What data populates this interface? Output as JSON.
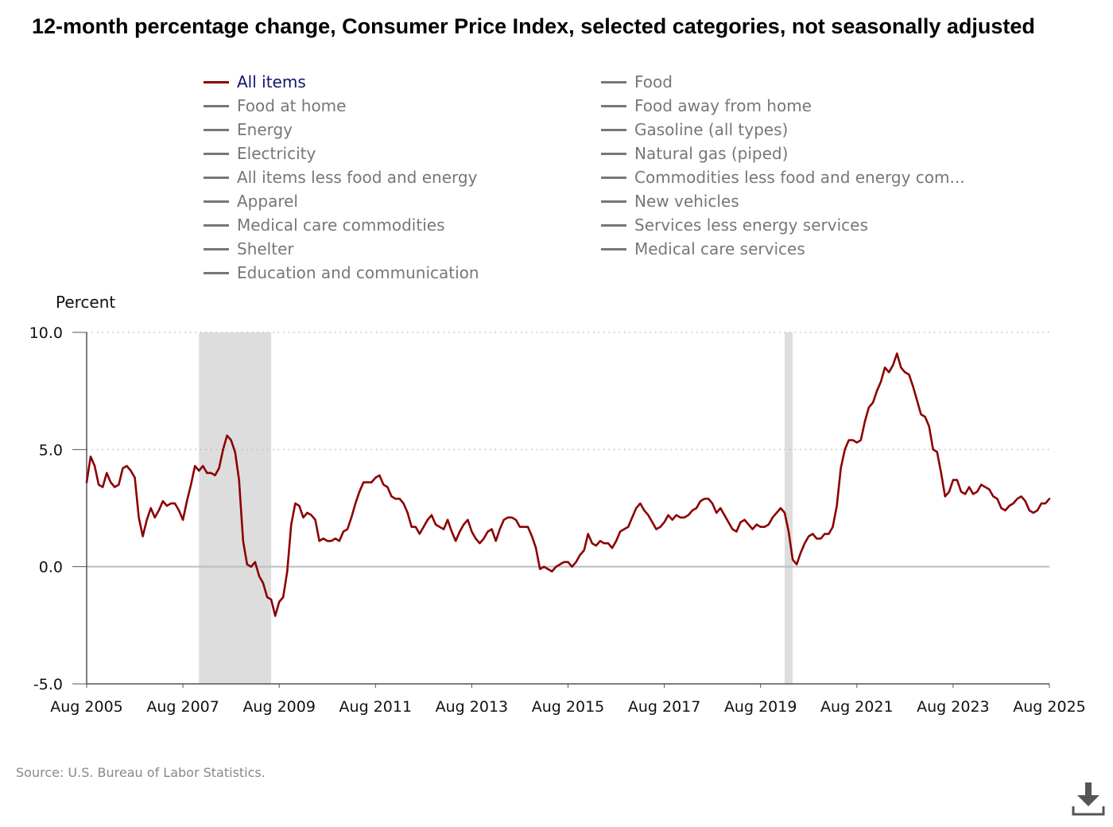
{
  "title": "12-month percentage change, Consumer Price Index, selected categories, not seasonally adjusted",
  "source": "Source: U.S. Bureau of Labor Statistics.",
  "download_icon": "download-icon",
  "colors": {
    "active_series": "#8b0000",
    "inactive_series": "#777777",
    "active_label": "#14146e",
    "recession": "#dddddd"
  },
  "legend": [
    {
      "label": "All items",
      "active": true
    },
    {
      "label": "Food",
      "active": false
    },
    {
      "label": "Food at home",
      "active": false
    },
    {
      "label": "Food away from home",
      "active": false
    },
    {
      "label": "Energy",
      "active": false
    },
    {
      "label": "Gasoline (all types)",
      "active": false
    },
    {
      "label": "Electricity",
      "active": false
    },
    {
      "label": "Natural gas (piped)",
      "active": false
    },
    {
      "label": "All items less food and energy",
      "active": false
    },
    {
      "label": "Commodities less food and energy com...",
      "active": false
    },
    {
      "label": "Apparel",
      "active": false
    },
    {
      "label": "New vehicles",
      "active": false
    },
    {
      "label": "Medical care commodities",
      "active": false
    },
    {
      "label": "Services less energy services",
      "active": false
    },
    {
      "label": "Shelter",
      "active": false
    },
    {
      "label": "Medical care services",
      "active": false
    },
    {
      "label": "Education and communication",
      "active": false
    }
  ],
  "chart_data": {
    "type": "line",
    "ylabel": "Percent",
    "ylim": [
      -5,
      10
    ],
    "y_ticks": [
      "10.0",
      "5.0",
      "0.0",
      "-5.0"
    ],
    "y_tick_values": [
      10,
      5,
      0,
      -5
    ],
    "x_ticks": [
      "Aug 2005",
      "Aug 2007",
      "Aug 2009",
      "Aug 2011",
      "Aug 2013",
      "Aug 2015",
      "Aug 2017",
      "Aug 2019",
      "Aug 2021",
      "Aug 2023",
      "Aug 2025"
    ],
    "x_start": "Aug 2005",
    "x_end": "Aug 2025",
    "grid": "horizontal dotted",
    "legend_position": "top",
    "recessions": [
      {
        "start": "Dec 2007",
        "end": "Jun 2009"
      },
      {
        "start": "Feb 2020",
        "end": "Apr 2020"
      }
    ],
    "series": [
      {
        "name": "All items",
        "values": [
          3.6,
          4.7,
          4.3,
          3.5,
          3.4,
          4.0,
          3.6,
          3.4,
          3.5,
          4.2,
          4.3,
          4.1,
          3.8,
          2.1,
          1.3,
          2.0,
          2.5,
          2.1,
          2.4,
          2.8,
          2.6,
          2.7,
          2.7,
          2.4,
          2.0,
          2.8,
          3.5,
          4.3,
          4.1,
          4.3,
          4.0,
          4.0,
          3.9,
          4.2,
          5.0,
          5.6,
          5.4,
          4.9,
          3.7,
          1.1,
          0.1,
          0.0,
          0.2,
          -0.4,
          -0.7,
          -1.3,
          -1.4,
          -2.1,
          -1.5,
          -1.3,
          -0.2,
          1.8,
          2.7,
          2.6,
          2.1,
          2.3,
          2.2,
          2.0,
          1.1,
          1.2,
          1.1,
          1.1,
          1.2,
          1.1,
          1.5,
          1.6,
          2.1,
          2.7,
          3.2,
          3.6,
          3.6,
          3.6,
          3.8,
          3.9,
          3.5,
          3.4,
          3.0,
          2.9,
          2.9,
          2.7,
          2.3,
          1.7,
          1.7,
          1.4,
          1.7,
          2.0,
          2.2,
          1.8,
          1.7,
          1.6,
          2.0,
          1.5,
          1.1,
          1.5,
          1.8,
          2.0,
          1.5,
          1.2,
          1.0,
          1.2,
          1.5,
          1.6,
          1.1,
          1.6,
          2.0,
          2.1,
          2.1,
          2.0,
          1.7,
          1.7,
          1.7,
          1.3,
          0.8,
          -0.1,
          0.0,
          -0.1,
          -0.2,
          0.0,
          0.1,
          0.2,
          0.2,
          0.0,
          0.2,
          0.5,
          0.7,
          1.4,
          1.0,
          0.9,
          1.1,
          1.0,
          1.0,
          0.8,
          1.1,
          1.5,
          1.6,
          1.7,
          2.1,
          2.5,
          2.7,
          2.4,
          2.2,
          1.9,
          1.6,
          1.7,
          1.9,
          2.2,
          2.0,
          2.2,
          2.1,
          2.1,
          2.2,
          2.4,
          2.5,
          2.8,
          2.9,
          2.9,
          2.7,
          2.3,
          2.5,
          2.2,
          1.9,
          1.6,
          1.5,
          1.9,
          2.0,
          1.8,
          1.6,
          1.8,
          1.7,
          1.7,
          1.8,
          2.1,
          2.3,
          2.5,
          2.3,
          1.5,
          0.3,
          0.1,
          0.6,
          1.0,
          1.3,
          1.4,
          1.2,
          1.2,
          1.4,
          1.4,
          1.7,
          2.6,
          4.2,
          5.0,
          5.4,
          5.4,
          5.3,
          5.4,
          6.2,
          6.8,
          7.0,
          7.5,
          7.9,
          8.5,
          8.3,
          8.6,
          9.1,
          8.5,
          8.3,
          8.2,
          7.7,
          7.1,
          6.5,
          6.4,
          6.0,
          5.0,
          4.9,
          4.0,
          3.0,
          3.2,
          3.7,
          3.7,
          3.2,
          3.1,
          3.4,
          3.1,
          3.2,
          3.5,
          3.4,
          3.3,
          3.0,
          2.9,
          2.5,
          2.4,
          2.6,
          2.7,
          2.9,
          3.0,
          2.8,
          2.4,
          2.3,
          2.4,
          2.7,
          2.7,
          2.9
        ]
      }
    ]
  }
}
